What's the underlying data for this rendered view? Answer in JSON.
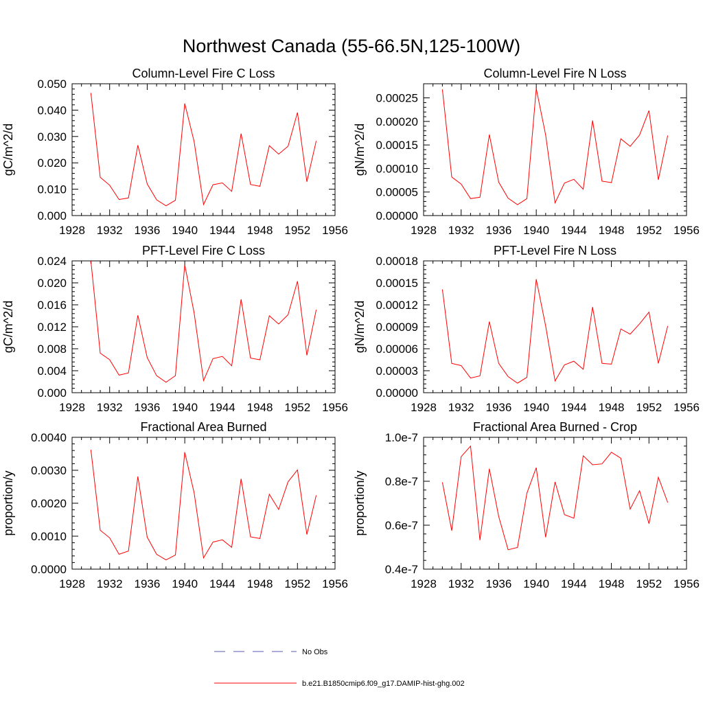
{
  "figure_title": "Northwest Canada (55-66.5N,125-100W)",
  "colors": {
    "series": "#ff0000",
    "obs": "#5a5ab4",
    "axes": "#000000"
  },
  "legend": {
    "entries": [
      {
        "label": "No Obs",
        "style": "dashed",
        "color": "#5a5ab4"
      },
      {
        "label": "b.e21.B1850cmip6.f09_g17.DAMIP-hist-ghg.002",
        "style": "solid",
        "color": "#ff0000"
      }
    ]
  },
  "chart_data": [
    {
      "type": "line",
      "title": "Column-Level Fire C Loss",
      "ylabel": "gC/m^2/d",
      "xlim": [
        1928,
        1956
      ],
      "ylim": [
        0,
        0.05
      ],
      "xticks": [
        1928,
        1932,
        1936,
        1940,
        1944,
        1948,
        1952,
        1956
      ],
      "xtick_labels": [
        "1928",
        "1932",
        "1936",
        "1940",
        "1944",
        "1948",
        "1952",
        "1956"
      ],
      "yticks": [
        0,
        0.01,
        0.02,
        0.03,
        0.04,
        0.05
      ],
      "ytick_labels": [
        "0.000",
        "0.010",
        "0.020",
        "0.030",
        "0.040",
        "0.050"
      ],
      "x": [
        1930,
        1931,
        1932,
        1933,
        1934,
        1935,
        1936,
        1937,
        1938,
        1939,
        1940,
        1941,
        1942,
        1943,
        1944,
        1945,
        1946,
        1947,
        1948,
        1949,
        1950,
        1951,
        1952,
        1953,
        1954
      ],
      "y": [
        0.0465,
        0.0145,
        0.0115,
        0.0061,
        0.0067,
        0.0267,
        0.012,
        0.006,
        0.0037,
        0.0058,
        0.0425,
        0.028,
        0.0042,
        0.0117,
        0.0124,
        0.0092,
        0.0311,
        0.0118,
        0.0111,
        0.0265,
        0.0233,
        0.0263,
        0.0391,
        0.0128,
        0.0283
      ]
    },
    {
      "type": "line",
      "title": "Column-Level Fire N Loss",
      "ylabel": "gN/m^2/d",
      "xlim": [
        1928,
        1956
      ],
      "ylim": [
        0,
        0.00028
      ],
      "xticks": [
        1928,
        1932,
        1936,
        1940,
        1944,
        1948,
        1952,
        1956
      ],
      "xtick_labels": [
        "1928",
        "1932",
        "1936",
        "1940",
        "1944",
        "1948",
        "1952",
        "1956"
      ],
      "yticks": [
        0,
        5e-05,
        0.0001,
        0.00015,
        0.0002,
        0.00025
      ],
      "ytick_labels": [
        "0.00000",
        "0.00005",
        "0.00010",
        "0.00015",
        "0.00020",
        "0.00025"
      ],
      "x": [
        1930,
        1931,
        1932,
        1933,
        1934,
        1935,
        1936,
        1937,
        1938,
        1939,
        1940,
        1941,
        1942,
        1943,
        1944,
        1945,
        1946,
        1947,
        1948,
        1949,
        1950,
        1951,
        1952,
        1953,
        1954
      ],
      "y": [
        0.000268,
        8.2e-05,
        6.7e-05,
        3.6e-05,
        3.9e-05,
        0.000172,
        7.1e-05,
        3.7e-05,
        2.3e-05,
        3.6e-05,
        0.00027,
        0.000171,
        2.7e-05,
        6.9e-05,
        7.7e-05,
        5.6e-05,
        0.000202,
        7.3e-05,
        7e-05,
        0.000163,
        0.000147,
        0.000171,
        0.000223,
        7.6e-05,
        0.00017
      ]
    },
    {
      "type": "line",
      "title": "PFT-Level Fire C Loss",
      "ylabel": "gC/m^2/d",
      "xlim": [
        1928,
        1956
      ],
      "ylim": [
        0,
        0.024
      ],
      "xticks": [
        1928,
        1932,
        1936,
        1940,
        1944,
        1948,
        1952,
        1956
      ],
      "xtick_labels": [
        "1928",
        "1932",
        "1936",
        "1940",
        "1944",
        "1948",
        "1952",
        "1956"
      ],
      "yticks": [
        0,
        0.004,
        0.008,
        0.012,
        0.016,
        0.02,
        0.024
      ],
      "ytick_labels": [
        "0.000",
        "0.004",
        "0.008",
        "0.012",
        "0.016",
        "0.020",
        "0.024"
      ],
      "x": [
        1930,
        1931,
        1932,
        1933,
        1934,
        1935,
        1936,
        1937,
        1938,
        1939,
        1940,
        1941,
        1942,
        1943,
        1944,
        1945,
        1946,
        1947,
        1948,
        1949,
        1950,
        1951,
        1952,
        1953,
        1954
      ],
      "y": [
        0.024,
        0.0072,
        0.006,
        0.0032,
        0.0036,
        0.0141,
        0.0064,
        0.0031,
        0.0019,
        0.0031,
        0.0233,
        0.0145,
        0.0022,
        0.0062,
        0.0066,
        0.0049,
        0.017,
        0.0063,
        0.006,
        0.014,
        0.0125,
        0.0142,
        0.0203,
        0.0068,
        0.0151
      ]
    },
    {
      "type": "line",
      "title": "PFT-Level Fire N Loss",
      "ylabel": "gN/m^2/d",
      "xlim": [
        1928,
        1956
      ],
      "ylim": [
        0,
        0.00018
      ],
      "xticks": [
        1928,
        1932,
        1936,
        1940,
        1944,
        1948,
        1952,
        1956
      ],
      "xtick_labels": [
        "1928",
        "1932",
        "1936",
        "1940",
        "1944",
        "1948",
        "1952",
        "1956"
      ],
      "yticks": [
        0,
        3e-05,
        6e-05,
        9e-05,
        0.00012,
        0.00015,
        0.00018
      ],
      "ytick_labels": [
        "0.00000",
        "0.00003",
        "0.00006",
        "0.00009",
        "0.00012",
        "0.00015",
        "0.00018"
      ],
      "x": [
        1930,
        1931,
        1932,
        1933,
        1934,
        1935,
        1936,
        1937,
        1938,
        1939,
        1940,
        1941,
        1942,
        1943,
        1944,
        1945,
        1946,
        1947,
        1948,
        1949,
        1950,
        1951,
        1952,
        1953,
        1954
      ],
      "y": [
        0.000141,
        4e-05,
        3.7e-05,
        2e-05,
        2.3e-05,
        9.7e-05,
        4e-05,
        2.2e-05,
        1.3e-05,
        2.1e-05,
        0.000155,
        9.1e-05,
        1.6e-05,
        3.8e-05,
        4.3e-05,
        3.2e-05,
        0.000117,
        4e-05,
        3.9e-05,
        8.7e-05,
        8e-05,
        9.4e-05,
        0.00011,
        4e-05,
        9.1e-05
      ]
    },
    {
      "type": "line",
      "title": "Fractional Area Burned",
      "ylabel": "proportion/y",
      "xlim": [
        1928,
        1956
      ],
      "ylim": [
        0,
        0.004
      ],
      "xticks": [
        1928,
        1932,
        1936,
        1940,
        1944,
        1948,
        1952,
        1956
      ],
      "xtick_labels": [
        "1928",
        "1932",
        "1936",
        "1940",
        "1944",
        "1948",
        "1952",
        "1956"
      ],
      "yticks": [
        0,
        0.001,
        0.002,
        0.003,
        0.004
      ],
      "ytick_labels": [
        "0.0000",
        "0.0010",
        "0.0020",
        "0.0030",
        "0.0040"
      ],
      "x": [
        1930,
        1931,
        1932,
        1933,
        1934,
        1935,
        1936,
        1937,
        1938,
        1939,
        1940,
        1941,
        1942,
        1943,
        1944,
        1945,
        1946,
        1947,
        1948,
        1949,
        1950,
        1951,
        1952,
        1953,
        1954
      ],
      "y": [
        0.00362,
        0.00118,
        0.00095,
        0.00045,
        0.00055,
        0.00281,
        0.00097,
        0.00045,
        0.00028,
        0.00043,
        0.00355,
        0.00231,
        0.00034,
        0.00082,
        0.00089,
        0.00066,
        0.00274,
        0.00098,
        0.00093,
        0.00227,
        0.00181,
        0.00265,
        0.00301,
        0.00105,
        0.00224
      ]
    },
    {
      "type": "line",
      "title": "Fractional Area Burned - Crop",
      "ylabel": "proportion/y",
      "xlim": [
        1928,
        1956
      ],
      "ylim": [
        4e-08,
        1e-07
      ],
      "xticks": [
        1928,
        1932,
        1936,
        1940,
        1944,
        1948,
        1952,
        1956
      ],
      "xtick_labels": [
        "1928",
        "1932",
        "1936",
        "1940",
        "1944",
        "1948",
        "1952",
        "1956"
      ],
      "yticks": [
        4e-08,
        6e-08,
        8e-08,
        1e-07
      ],
      "ytick_labels": [
        "0.4e-7",
        "0.6e-7",
        "0.8e-7",
        "1.0e-7"
      ],
      "x": [
        1930,
        1931,
        1932,
        1933,
        1934,
        1935,
        1936,
        1937,
        1938,
        1939,
        1940,
        1941,
        1942,
        1943,
        1944,
        1945,
        1946,
        1947,
        1948,
        1949,
        1950,
        1951,
        1952,
        1953,
        1954
      ],
      "y": [
        7.95e-08,
        5.75e-08,
        9.12e-08,
        9.6e-08,
        5.32e-08,
        8.57e-08,
        6.4e-08,
        4.88e-08,
        4.99e-08,
        7.46e-08,
        8.62e-08,
        5.45e-08,
        7.97e-08,
        6.48e-08,
        6.32e-08,
        9.16e-08,
        8.75e-08,
        8.79e-08,
        9.32e-08,
        9.05e-08,
        6.73e-08,
        7.57e-08,
        6.07e-08,
        8.18e-08,
        7.03e-08
      ]
    }
  ]
}
